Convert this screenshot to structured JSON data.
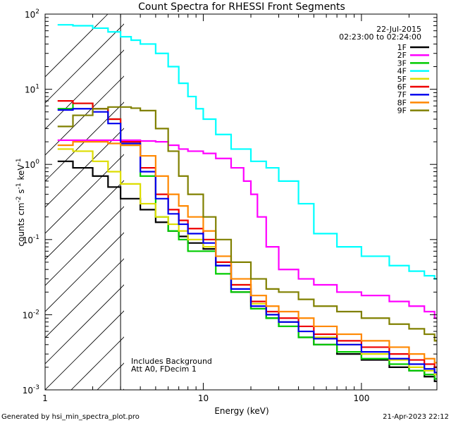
{
  "chart_data": {
    "type": "line",
    "title": "Count Spectra for RHESSI Front Segments",
    "xlabel": "Energy (keV)",
    "ylabel_parts": [
      "counts cm",
      "-2",
      " s",
      "-1",
      " keV",
      "-1"
    ],
    "xscale": "log",
    "yscale": "log",
    "xlim": [
      1,
      300
    ],
    "ylim": [
      0.001,
      100
    ],
    "x_tick_labels": [
      "1",
      "10",
      "100"
    ],
    "y_tick_labels": [
      {
        "base": "10",
        "exp": "-3"
      },
      {
        "base": "10",
        "exp": "-2"
      },
      {
        "base": "10",
        "exp": "-1"
      },
      {
        "base": "10",
        "exp": "0"
      },
      {
        "base": "10",
        "exp": "1"
      },
      {
        "base": "10",
        "exp": "2"
      }
    ],
    "date": "22-Jul-2015",
    "time_range": "02:23:00 to 02:24:00",
    "attenuator_threshold_keV": 3,
    "annotations": [
      "Includes Background",
      "Att A0, FDecim 1"
    ],
    "legend_position": "top-right",
    "series": [
      {
        "name": "1F",
        "color": "#000000",
        "x": [
          1.2,
          1.5,
          2,
          2.5,
          3,
          4,
          5,
          6,
          7,
          8,
          10,
          12,
          15,
          20,
          25,
          30,
          40,
          50,
          70,
          100,
          150,
          200,
          250,
          290
        ],
        "y": [
          1.1,
          0.9,
          0.7,
          0.5,
          0.35,
          0.25,
          0.17,
          0.13,
          0.11,
          0.09,
          0.075,
          0.045,
          0.02,
          0.012,
          0.009,
          0.007,
          0.005,
          0.004,
          0.003,
          0.0025,
          0.002,
          0.0018,
          0.0015,
          0.0013
        ]
      },
      {
        "name": "2F",
        "color": "#ff00ff",
        "x": [
          1.2,
          1.5,
          2,
          2.5,
          3,
          4,
          5,
          6,
          7,
          8,
          10,
          12,
          15,
          18,
          20,
          22,
          25,
          30,
          40,
          50,
          70,
          100,
          150,
          200,
          250,
          290
        ],
        "y": [
          2.1,
          2.1,
          2.1,
          2.1,
          2.1,
          2.05,
          2.0,
          1.8,
          1.6,
          1.5,
          1.4,
          1.2,
          0.9,
          0.6,
          0.4,
          0.2,
          0.08,
          0.04,
          0.03,
          0.025,
          0.02,
          0.018,
          0.015,
          0.013,
          0.011,
          0.009
        ]
      },
      {
        "name": "3F",
        "color": "#00cc00",
        "x": [
          1.2,
          1.5,
          2,
          2.5,
          3,
          4,
          5,
          6,
          7,
          8,
          10,
          12,
          15,
          20,
          25,
          30,
          40,
          50,
          70,
          100,
          150,
          200,
          250,
          290
        ],
        "y": [
          5.5,
          6.5,
          5.5,
          4.0,
          1.8,
          0.7,
          0.2,
          0.13,
          0.1,
          0.07,
          0.07,
          0.035,
          0.02,
          0.012,
          0.009,
          0.007,
          0.005,
          0.004,
          0.0032,
          0.0026,
          0.0022,
          0.0018,
          0.0016,
          0.0014
        ]
      },
      {
        "name": "4F",
        "color": "#00ffff",
        "x": [
          1.2,
          1.5,
          2,
          2.5,
          3,
          3.5,
          4,
          5,
          6,
          7,
          8,
          9,
          10,
          12,
          15,
          20,
          25,
          30,
          40,
          50,
          70,
          100,
          150,
          200,
          250,
          290
        ],
        "y": [
          72,
          70,
          65,
          58,
          50,
          45,
          40,
          30,
          20,
          12,
          8,
          5.5,
          4,
          2.5,
          1.6,
          1.1,
          0.9,
          0.6,
          0.3,
          0.12,
          0.08,
          0.06,
          0.045,
          0.038,
          0.033,
          0.03
        ]
      },
      {
        "name": "5F",
        "color": "#dddd00",
        "x": [
          1.2,
          1.5,
          2,
          2.5,
          3,
          4,
          5,
          6,
          7,
          8,
          10,
          12,
          15,
          20,
          25,
          30,
          40,
          50,
          70,
          100,
          150,
          200,
          250,
          290
        ],
        "y": [
          1.6,
          1.5,
          1.1,
          0.8,
          0.55,
          0.3,
          0.2,
          0.16,
          0.13,
          0.1,
          0.08,
          0.05,
          0.025,
          0.014,
          0.01,
          0.008,
          0.006,
          0.005,
          0.004,
          0.003,
          0.0025,
          0.002,
          0.0018,
          0.0016
        ]
      },
      {
        "name": "6F",
        "color": "#ee0000",
        "x": [
          1.2,
          1.5,
          2,
          2.5,
          3,
          4,
          5,
          6,
          7,
          8,
          10,
          12,
          15,
          20,
          25,
          30,
          40,
          50,
          70,
          100,
          150,
          200,
          250,
          290
        ],
        "y": [
          7.0,
          6.5,
          5.5,
          4.0,
          2.0,
          0.9,
          0.4,
          0.25,
          0.18,
          0.14,
          0.1,
          0.05,
          0.025,
          0.015,
          0.011,
          0.009,
          0.007,
          0.0055,
          0.0045,
          0.0037,
          0.003,
          0.0025,
          0.0022,
          0.002
        ]
      },
      {
        "name": "7F",
        "color": "#0000ee",
        "x": [
          1.2,
          1.5,
          2,
          2.5,
          3,
          4,
          5,
          6,
          7,
          8,
          10,
          12,
          15,
          20,
          25,
          30,
          40,
          50,
          70,
          100,
          150,
          200,
          250,
          290
        ],
        "y": [
          5.3,
          5.5,
          5.0,
          3.5,
          1.9,
          0.8,
          0.35,
          0.22,
          0.16,
          0.12,
          0.09,
          0.045,
          0.022,
          0.013,
          0.01,
          0.008,
          0.006,
          0.0048,
          0.004,
          0.0032,
          0.0026,
          0.0022,
          0.0019,
          0.0017
        ]
      },
      {
        "name": "8F",
        "color": "#ff8800",
        "x": [
          1.2,
          1.5,
          2,
          2.5,
          3,
          4,
          5,
          6,
          7,
          8,
          10,
          12,
          15,
          20,
          25,
          30,
          40,
          50,
          70,
          100,
          150,
          200,
          250,
          290
        ],
        "y": [
          1.8,
          2.0,
          2.0,
          1.9,
          1.8,
          1.3,
          0.7,
          0.4,
          0.28,
          0.2,
          0.13,
          0.06,
          0.03,
          0.018,
          0.013,
          0.011,
          0.009,
          0.007,
          0.0055,
          0.0045,
          0.0037,
          0.003,
          0.0026,
          0.0023
        ]
      },
      {
        "name": "9F",
        "color": "#808000",
        "x": [
          1.2,
          1.5,
          2,
          2.5,
          3,
          3.5,
          4,
          5,
          6,
          7,
          8,
          10,
          12,
          15,
          20,
          25,
          30,
          40,
          50,
          70,
          100,
          150,
          200,
          250,
          290
        ],
        "y": [
          3.2,
          4.5,
          5.5,
          5.8,
          5.8,
          5.6,
          5.2,
          3.0,
          1.5,
          0.7,
          0.4,
          0.2,
          0.1,
          0.05,
          0.03,
          0.022,
          0.02,
          0.016,
          0.013,
          0.011,
          0.009,
          0.0075,
          0.0065,
          0.0055,
          0.0045
        ]
      }
    ]
  },
  "footer": {
    "generated_by": "Generated by hsi_min_spectra_plot.pro",
    "timestamp": "21-Apr-2023 22:12"
  }
}
